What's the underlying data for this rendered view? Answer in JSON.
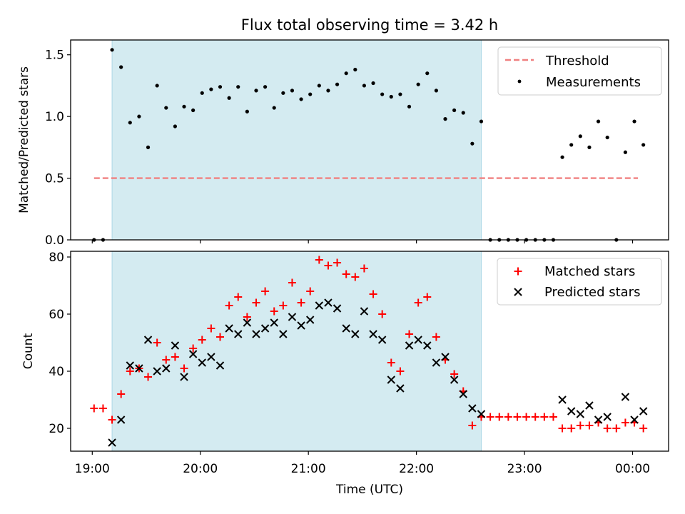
{
  "chart_data": {
    "title": "Flux total observing time = 3.42 h",
    "xlabel": "Time (UTC)",
    "x_unit": "hours UTC",
    "x_range": [
      "18:48",
      "00:20"
    ],
    "x_ticks": [
      {
        "label": "19:00",
        "value": "19:00"
      },
      {
        "label": "20:00",
        "value": "20:00"
      },
      {
        "label": "21:00",
        "value": "21:00"
      },
      {
        "label": "22:00",
        "value": "22:00"
      },
      {
        "label": "23:00",
        "value": "23:00"
      },
      {
        "label": "00:00",
        "value": "00:00"
      }
    ],
    "highlight_span": {
      "start": "19:11",
      "end": "22:36",
      "color": "#d4ebf1"
    },
    "panels": [
      {
        "type": "scatter",
        "ylabel": "Matched/Predicted stars",
        "ylim": [
          0,
          1.62
        ],
        "yticks": [
          "0.0",
          "0.5",
          "1.0",
          "1.5"
        ],
        "grid": false,
        "legend_position": "top-right",
        "threshold": {
          "name": "Threshold",
          "value": 0.5,
          "x_start": "19:01",
          "x_end": "00:03",
          "color": "#f08080",
          "style": "dashed"
        },
        "series": [
          {
            "name": "Measurements",
            "color": "#000000",
            "marker": "dot",
            "points": [
              [
                "19:01",
                0
              ],
              [
                "19:06",
                0
              ],
              [
                "19:11",
                1.54
              ],
              [
                "19:16",
                1.4
              ],
              [
                "19:21",
                0.95
              ],
              [
                "19:26",
                1.0
              ],
              [
                "19:31",
                0.75
              ],
              [
                "19:36",
                1.25
              ],
              [
                "19:41",
                1.07
              ],
              [
                "19:46",
                0.92
              ],
              [
                "19:51",
                1.08
              ],
              [
                "19:56",
                1.05
              ],
              [
                "20:01",
                1.19
              ],
              [
                "20:06",
                1.22
              ],
              [
                "20:11",
                1.24
              ],
              [
                "20:16",
                1.15
              ],
              [
                "20:21",
                1.24
              ],
              [
                "20:26",
                1.04
              ],
              [
                "20:31",
                1.21
              ],
              [
                "20:36",
                1.24
              ],
              [
                "20:41",
                1.07
              ],
              [
                "20:46",
                1.19
              ],
              [
                "20:51",
                1.21
              ],
              [
                "20:56",
                1.14
              ],
              [
                "21:01",
                1.18
              ],
              [
                "21:06",
                1.25
              ],
              [
                "21:11",
                1.21
              ],
              [
                "21:16",
                1.26
              ],
              [
                "21:21",
                1.35
              ],
              [
                "21:26",
                1.38
              ],
              [
                "21:31",
                1.25
              ],
              [
                "21:36",
                1.27
              ],
              [
                "21:41",
                1.18
              ],
              [
                "21:46",
                1.16
              ],
              [
                "21:51",
                1.18
              ],
              [
                "21:56",
                1.08
              ],
              [
                "22:01",
                1.26
              ],
              [
                "22:06",
                1.35
              ],
              [
                "22:11",
                1.21
              ],
              [
                "22:16",
                0.98
              ],
              [
                "22:21",
                1.05
              ],
              [
                "22:26",
                1.03
              ],
              [
                "22:31",
                0.78
              ],
              [
                "22:36",
                0.96
              ],
              [
                "22:41",
                0
              ],
              [
                "22:46",
                0
              ],
              [
                "22:51",
                0
              ],
              [
                "22:56",
                0
              ],
              [
                "23:01",
                0
              ],
              [
                "23:06",
                0
              ],
              [
                "23:11",
                0
              ],
              [
                "23:16",
                0
              ],
              [
                "23:21",
                0.67
              ],
              [
                "23:26",
                0.77
              ],
              [
                "23:31",
                0.84
              ],
              [
                "23:36",
                0.75
              ],
              [
                "23:41",
                0.96
              ],
              [
                "23:46",
                0.83
              ],
              [
                "23:51",
                0
              ],
              [
                "23:56",
                0.71
              ],
              [
                "00:01",
                0.96
              ],
              [
                "00:06",
                0.77
              ]
            ]
          }
        ]
      },
      {
        "type": "scatter",
        "ylabel": "Count",
        "ylim": [
          12,
          82
        ],
        "yticks": [
          "20",
          "40",
          "60",
          "80"
        ],
        "grid": false,
        "legend_position": "top-right",
        "series": [
          {
            "name": "Matched stars",
            "color": "#ff0000",
            "marker": "plus",
            "points": [
              [
                "19:01",
                27
              ],
              [
                "19:06",
                27
              ],
              [
                "19:11",
                23
              ],
              [
                "19:16",
                32
              ],
              [
                "19:21",
                40
              ],
              [
                "19:26",
                41
              ],
              [
                "19:31",
                38
              ],
              [
                "19:36",
                50
              ],
              [
                "19:41",
                44
              ],
              [
                "19:46",
                45
              ],
              [
                "19:51",
                41
              ],
              [
                "19:56",
                48
              ],
              [
                "20:01",
                51
              ],
              [
                "20:06",
                55
              ],
              [
                "20:11",
                52
              ],
              [
                "20:16",
                63
              ],
              [
                "20:21",
                66
              ],
              [
                "20:26",
                59
              ],
              [
                "20:31",
                64
              ],
              [
                "20:36",
                68
              ],
              [
                "20:41",
                61
              ],
              [
                "20:46",
                63
              ],
              [
                "20:51",
                71
              ],
              [
                "20:56",
                64
              ],
              [
                "21:01",
                68
              ],
              [
                "21:06",
                79
              ],
              [
                "21:11",
                77
              ],
              [
                "21:16",
                78
              ],
              [
                "21:21",
                74
              ],
              [
                "21:26",
                73
              ],
              [
                "21:31",
                76
              ],
              [
                "21:36",
                67
              ],
              [
                "21:41",
                60
              ],
              [
                "21:46",
                43
              ],
              [
                "21:51",
                40
              ],
              [
                "21:56",
                53
              ],
              [
                "22:01",
                64
              ],
              [
                "22:06",
                66
              ],
              [
                "22:11",
                52
              ],
              [
                "22:16",
                44
              ],
              [
                "22:21",
                39
              ],
              [
                "22:26",
                33
              ],
              [
                "22:31",
                21
              ],
              [
                "22:36",
                24
              ],
              [
                "22:41",
                24
              ],
              [
                "22:46",
                24
              ],
              [
                "22:51",
                24
              ],
              [
                "22:56",
                24
              ],
              [
                "23:01",
                24
              ],
              [
                "23:06",
                24
              ],
              [
                "23:11",
                24
              ],
              [
                "23:16",
                24
              ],
              [
                "23:21",
                20
              ],
              [
                "23:26",
                20
              ],
              [
                "23:31",
                21
              ],
              [
                "23:36",
                21
              ],
              [
                "23:41",
                22
              ],
              [
                "23:46",
                20
              ],
              [
                "23:51",
                20
              ],
              [
                "23:56",
                22
              ],
              [
                "00:01",
                22
              ],
              [
                "00:06",
                20
              ]
            ]
          },
          {
            "name": "Predicted stars",
            "color": "#000000",
            "marker": "x",
            "points": [
              [
                "19:11",
                15
              ],
              [
                "19:16",
                23
              ],
              [
                "19:21",
                42
              ],
              [
                "19:26",
                41
              ],
              [
                "19:31",
                51
              ],
              [
                "19:36",
                40
              ],
              [
                "19:41",
                41
              ],
              [
                "19:46",
                49
              ],
              [
                "19:51",
                38
              ],
              [
                "19:56",
                46
              ],
              [
                "20:01",
                43
              ],
              [
                "20:06",
                45
              ],
              [
                "20:11",
                42
              ],
              [
                "20:16",
                55
              ],
              [
                "20:21",
                53
              ],
              [
                "20:26",
                57
              ],
              [
                "20:31",
                53
              ],
              [
                "20:36",
                55
              ],
              [
                "20:41",
                57
              ],
              [
                "20:46",
                53
              ],
              [
                "20:51",
                59
              ],
              [
                "20:56",
                56
              ],
              [
                "21:01",
                58
              ],
              [
                "21:06",
                63
              ],
              [
                "21:11",
                64
              ],
              [
                "21:16",
                62
              ],
              [
                "21:21",
                55
              ],
              [
                "21:26",
                53
              ],
              [
                "21:31",
                61
              ],
              [
                "21:36",
                53
              ],
              [
                "21:41",
                51
              ],
              [
                "21:46",
                37
              ],
              [
                "21:51",
                34
              ],
              [
                "21:56",
                49
              ],
              [
                "22:01",
                51
              ],
              [
                "22:06",
                49
              ],
              [
                "22:11",
                43
              ],
              [
                "22:16",
                45
              ],
              [
                "22:21",
                37
              ],
              [
                "22:26",
                32
              ],
              [
                "22:31",
                27
              ],
              [
                "22:36",
                25
              ],
              [
                "23:21",
                30
              ],
              [
                "23:26",
                26
              ],
              [
                "23:31",
                25
              ],
              [
                "23:36",
                28
              ],
              [
                "23:41",
                23
              ],
              [
                "23:46",
                24
              ],
              [
                "23:56",
                31
              ],
              [
                "00:01",
                23
              ],
              [
                "00:06",
                26
              ]
            ]
          }
        ]
      }
    ]
  }
}
